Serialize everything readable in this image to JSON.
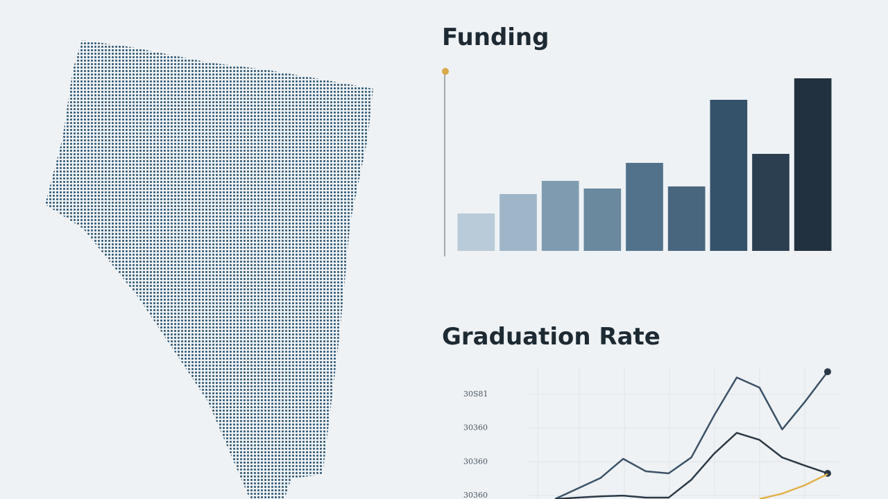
{
  "chart_data": [
    {
      "type": "bar",
      "title": "Funding",
      "values": [
        54,
        82,
        101,
        90,
        127,
        93,
        218,
        140,
        249
      ],
      "colors": [
        "#b9cbd9",
        "#9fb6c8",
        "#7f9bb0",
        "#6a889e",
        "#52728b",
        "#48667e",
        "#34526a",
        "#2b3f51",
        "#22313f"
      ],
      "ylim": [
        0,
        260
      ]
    },
    {
      "type": "line",
      "title": "Graduation Rate",
      "x": [
        0,
        1,
        2,
        3,
        4,
        5,
        6,
        7,
        8,
        9,
        10,
        11,
        12
      ],
      "xlim": [
        0,
        12
      ],
      "ylim": [
        0.9,
        4.8
      ],
      "yticks": [
        {
          "value": 4,
          "label": "30S81"
        },
        {
          "value": 3,
          "label": "30360"
        },
        {
          "value": 2,
          "label": "30360"
        },
        {
          "value": 1,
          "label": "30360"
        }
      ],
      "grid": true,
      "series": [
        {
          "color": "#3a5166",
          "values": [
            0.9,
            1.21,
            1.52,
            2.09,
            1.72,
            1.66,
            2.13,
            3.37,
            4.5,
            4.2,
            2.96,
            3.78,
            4.67
          ]
        },
        {
          "color": "#2a3845",
          "values": [
            0.9,
            0.94,
            0.98,
            1.0,
            0.94,
            0.94,
            1.47,
            2.24,
            2.86,
            2.65,
            2.13,
            1.89,
            1.66
          ]
        },
        {
          "color": "#e2b04a",
          "values": [
            null,
            null,
            null,
            null,
            null,
            null,
            null,
            null,
            null,
            0.9,
            1.06,
            1.31,
            1.64
          ]
        }
      ]
    }
  ]
}
